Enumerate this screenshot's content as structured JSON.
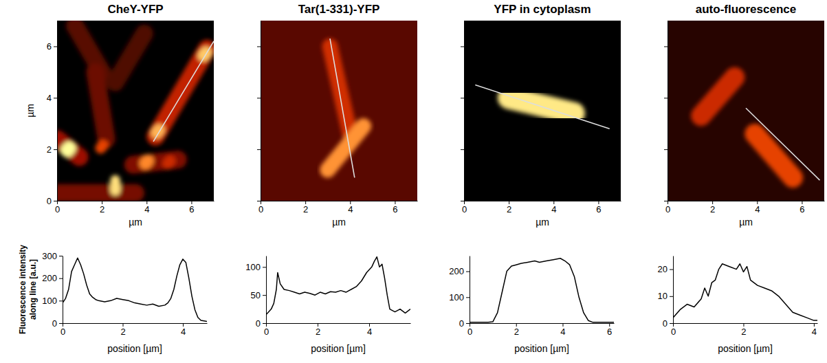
{
  "chart_data": [
    {
      "type": "image",
      "title": "CheY-YFP",
      "x_label": "µm",
      "y_label": "µm",
      "xlim": [
        0,
        7
      ],
      "ylim": [
        0,
        7
      ],
      "xticks": [
        0,
        2,
        4,
        6
      ],
      "yticks": [
        0,
        2,
        4,
        6
      ],
      "zlim": [
        0,
        255
      ],
      "background": 0,
      "objects": [
        {
          "x": [
            0.8,
            2.0
          ],
          "y": [
            6.8,
            5.0
          ],
          "width": 0.8,
          "intensity": 45
        },
        {
          "x": [
            2.6,
            3.9
          ],
          "y": [
            4.6,
            6.5
          ],
          "width": 0.8,
          "intensity": 40
        },
        {
          "x": [
            1.7,
            2.2
          ],
          "y": [
            5.0,
            2.4
          ],
          "width": 0.8,
          "intensity": 55
        },
        {
          "x": [
            0.0,
            3.5
          ],
          "y": [
            0.3,
            0.3
          ],
          "width": 0.8,
          "intensity": 60
        },
        {
          "x": [
            0.0,
            1.0
          ],
          "y": [
            2.4,
            1.7
          ],
          "width": 0.8,
          "intensity": 80
        },
        {
          "x": [
            3.4,
            5.4
          ],
          "y": [
            1.4,
            1.6
          ],
          "width": 0.8,
          "intensity": 65
        },
        {
          "x": [
            4.4,
            6.7
          ],
          "y": [
            2.5,
            5.9
          ],
          "width": 0.8,
          "intensity": 110
        },
        {
          "x": [
            6.55,
            6.65
          ],
          "y": [
            5.65,
            5.75
          ],
          "width": 0.55,
          "intensity": 230
        },
        {
          "x": [
            4.45,
            4.55
          ],
          "y": [
            2.65,
            2.75
          ],
          "width": 0.55,
          "intensity": 220
        },
        {
          "x": [
            0.45,
            0.55
          ],
          "y": [
            1.95,
            2.05
          ],
          "width": 0.6,
          "intensity": 255
        },
        {
          "x": [
            1.95,
            2.05
          ],
          "y": [
            2.05,
            2.15
          ],
          "width": 0.5,
          "intensity": 150
        },
        {
          "x": [
            3.95,
            4.05
          ],
          "y": [
            1.45,
            1.55
          ],
          "width": 0.55,
          "intensity": 200
        },
        {
          "x": [
            4.95,
            5.05
          ],
          "y": [
            1.45,
            1.55
          ],
          "width": 0.5,
          "intensity": 120
        },
        {
          "x": [
            2.6,
            2.6
          ],
          "y": [
            0.4,
            0.8
          ],
          "width": 0.45,
          "intensity": 240
        }
      ],
      "line": {
        "x": [
          4.3,
          7.0
        ],
        "y": [
          2.3,
          6.2
        ],
        "color": "#dddddd"
      }
    },
    {
      "type": "image",
      "title": "Tar(1-331)-YFP",
      "x_label": "µm",
      "tick_labels": "x",
      "xlim": [
        0,
        7
      ],
      "ylim": [
        0,
        7
      ],
      "xticks": [
        0,
        2,
        4,
        6
      ],
      "yticks": [
        0,
        2,
        4,
        6
      ],
      "zlim": [
        0,
        255
      ],
      "background": 45,
      "objects": [
        {
          "x": [
            3.1,
            4.0
          ],
          "y": [
            6.0,
            2.6
          ],
          "width": 0.7,
          "intensity": 125
        },
        {
          "x": [
            3.0,
            4.6
          ],
          "y": [
            1.2,
            2.9
          ],
          "width": 0.7,
          "intensity": 205
        }
      ],
      "line": {
        "x": [
          3.1,
          4.2
        ],
        "y": [
          6.3,
          0.9
        ],
        "color": "#dddddd"
      }
    },
    {
      "type": "image",
      "title": "YFP in cytoplasm",
      "x_label": "µm",
      "tick_labels": "x",
      "xlim": [
        0,
        7
      ],
      "ylim": [
        0,
        7
      ],
      "xticks": [
        0,
        2,
        4,
        6
      ],
      "yticks": [
        0,
        2,
        4,
        6
      ],
      "zlim": [
        0,
        255
      ],
      "background": 0,
      "objects": [
        {
          "x": [
            2.0,
            4.9
          ],
          "y": [
            4.0,
            3.4
          ],
          "width": 1.0,
          "intensity": 245
        }
      ],
      "line": {
        "x": [
          0.5,
          6.5
        ],
        "y": [
          4.5,
          2.8
        ],
        "color": "#dddddd"
      }
    },
    {
      "type": "image",
      "title": "auto-fluorescence",
      "x_label": "µm",
      "tick_labels": "x",
      "xlim": [
        0,
        7
      ],
      "ylim": [
        0,
        7
      ],
      "xticks": [
        0,
        2,
        4,
        6
      ],
      "yticks": [
        0,
        2,
        4,
        6
      ],
      "zlim": [
        0,
        255
      ],
      "background": 20,
      "objects": [
        {
          "x": [
            1.5,
            3.0
          ],
          "y": [
            3.3,
            4.8
          ],
          "width": 0.9,
          "intensity": 120
        },
        {
          "x": [
            3.9,
            5.6
          ],
          "y": [
            2.6,
            0.9
          ],
          "width": 0.9,
          "intensity": 150
        }
      ],
      "line": {
        "x": [
          3.5,
          6.8
        ],
        "y": [
          3.6,
          0.8
        ],
        "color": "#dddddd"
      }
    },
    {
      "type": "line",
      "x_label": "position [µm]",
      "y_label": "Fluorescence intensity along line [a.u.]",
      "xlim": [
        0,
        4.8
      ],
      "ylim": [
        0,
        300
      ],
      "xticks": [
        0,
        2,
        4
      ],
      "yticks": [
        0,
        100,
        200,
        300
      ],
      "color": "#000000",
      "x": [
        0,
        0.1,
        0.2,
        0.3,
        0.4,
        0.5,
        0.6,
        0.7,
        0.8,
        0.9,
        1.0,
        1.1,
        1.2,
        1.4,
        1.6,
        1.8,
        2.0,
        2.2,
        2.4,
        2.6,
        2.8,
        3.0,
        3.2,
        3.4,
        3.5,
        3.6,
        3.7,
        3.8,
        3.9,
        4.0,
        4.1,
        4.2,
        4.3,
        4.4,
        4.5,
        4.6,
        4.7,
        4.8
      ],
      "values": [
        90,
        110,
        150,
        230,
        260,
        290,
        260,
        220,
        170,
        130,
        115,
        105,
        100,
        95,
        100,
        110,
        105,
        100,
        90,
        85,
        80,
        85,
        75,
        80,
        90,
        110,
        150,
        210,
        260,
        285,
        270,
        200,
        120,
        60,
        25,
        12,
        10,
        8
      ]
    },
    {
      "type": "line",
      "x_label": "position [µm]",
      "xlim": [
        0,
        5.6
      ],
      "ylim": [
        0,
        120
      ],
      "xticks": [
        0,
        2,
        4
      ],
      "yticks": [
        0,
        50,
        100
      ],
      "color": "#000000",
      "x": [
        0,
        0.2,
        0.3,
        0.4,
        0.45,
        0.55,
        0.7,
        0.9,
        1.1,
        1.3,
        1.5,
        1.7,
        1.9,
        2.1,
        2.3,
        2.5,
        2.7,
        2.9,
        3.1,
        3.3,
        3.5,
        3.7,
        3.9,
        4.1,
        4.2,
        4.3,
        4.4,
        4.5,
        4.6,
        4.7,
        4.8,
        5.0,
        5.2,
        5.4,
        5.6
      ],
      "values": [
        15,
        25,
        35,
        60,
        90,
        70,
        60,
        58,
        55,
        52,
        55,
        53,
        50,
        55,
        52,
        56,
        55,
        58,
        55,
        60,
        65,
        75,
        90,
        100,
        110,
        118,
        100,
        105,
        80,
        50,
        25,
        20,
        25,
        18,
        25
      ]
    },
    {
      "type": "line",
      "x_label": "position [µm]",
      "xlim": [
        0,
        6.2
      ],
      "ylim": [
        0,
        260
      ],
      "xticks": [
        0,
        2,
        4,
        6
      ],
      "yticks": [
        0,
        100,
        200
      ],
      "color": "#000000",
      "x": [
        0,
        0.8,
        1.0,
        1.2,
        1.4,
        1.6,
        1.8,
        2.0,
        2.2,
        2.5,
        2.8,
        3.0,
        3.3,
        3.6,
        3.9,
        4.1,
        4.3,
        4.5,
        4.7,
        4.9,
        5.1,
        5.3,
        6.2
      ],
      "values": [
        3,
        3,
        5,
        40,
        120,
        200,
        220,
        225,
        230,
        235,
        240,
        235,
        240,
        245,
        250,
        240,
        225,
        180,
        100,
        40,
        10,
        3,
        3
      ]
    },
    {
      "type": "line",
      "x_label": "position [µm]",
      "xlim": [
        0,
        4.1
      ],
      "ylim": [
        0,
        25
      ],
      "xticks": [
        0,
        2,
        4
      ],
      "yticks": [
        0,
        10,
        20
      ],
      "color": "#000000",
      "x": [
        0,
        0.2,
        0.4,
        0.6,
        0.8,
        0.9,
        1.0,
        1.1,
        1.2,
        1.3,
        1.4,
        1.6,
        1.8,
        1.9,
        2.0,
        2.1,
        2.2,
        2.4,
        2.6,
        2.8,
        3.0,
        3.2,
        3.4,
        3.6,
        3.8,
        4.0,
        4.1
      ],
      "values": [
        2,
        5,
        7,
        6,
        9,
        13,
        10,
        15,
        16,
        20,
        22,
        21,
        20,
        22,
        19,
        21,
        16,
        14,
        13,
        12,
        10,
        7,
        4,
        3,
        2,
        1,
        1
      ]
    }
  ]
}
